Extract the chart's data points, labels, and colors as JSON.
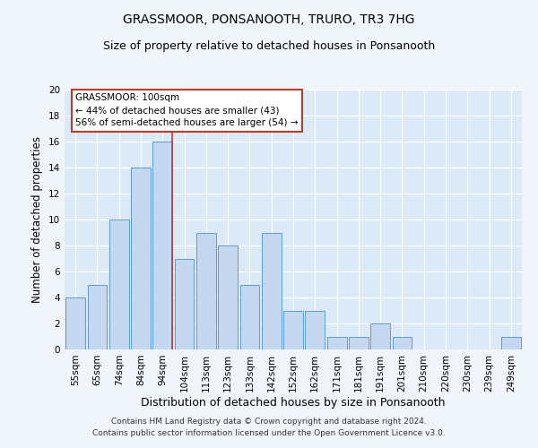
{
  "title": "GRASSMOOR, PONSANOOTH, TRURO, TR3 7HG",
  "subtitle": "Size of property relative to detached houses in Ponsanooth",
  "xlabel": "Distribution of detached houses by size in Ponsanooth",
  "ylabel": "Number of detached properties",
  "categories": [
    "55sqm",
    "65sqm",
    "74sqm",
    "84sqm",
    "94sqm",
    "104sqm",
    "113sqm",
    "123sqm",
    "133sqm",
    "142sqm",
    "152sqm",
    "162sqm",
    "171sqm",
    "181sqm",
    "191sqm",
    "201sqm",
    "210sqm",
    "220sqm",
    "230sqm",
    "239sqm",
    "249sqm"
  ],
  "values": [
    4,
    5,
    10,
    14,
    16,
    7,
    9,
    8,
    5,
    9,
    3,
    3,
    1,
    1,
    2,
    1,
    0,
    0,
    0,
    0,
    1
  ],
  "bar_color": "#c5d8f0",
  "bar_edge_color": "#5b9bd5",
  "highlight_bar_index": 4,
  "highlight_line_color": "#c0392b",
  "ylim": [
    0,
    20
  ],
  "yticks": [
    0,
    2,
    4,
    6,
    8,
    10,
    12,
    14,
    16,
    18,
    20
  ],
  "annotation_title": "GRASSMOOR: 100sqm",
  "annotation_line1": "← 44% of detached houses are smaller (43)",
  "annotation_line2": "56% of semi-detached houses are larger (54) →",
  "annotation_box_color": "#ffffff",
  "annotation_box_edge": "#c0392b",
  "footer1": "Contains HM Land Registry data © Crown copyright and database right 2024.",
  "footer2": "Contains public sector information licensed under the Open Government Licence v3.0.",
  "background_color": "#dce9f7",
  "grid_color": "#ffffff",
  "fig_background": "#f0f5fc",
  "title_fontsize": 10,
  "subtitle_fontsize": 9,
  "xlabel_fontsize": 9,
  "ylabel_fontsize": 8.5,
  "tick_fontsize": 7.5,
  "annotation_fontsize": 7.5,
  "footer_fontsize": 6.5
}
